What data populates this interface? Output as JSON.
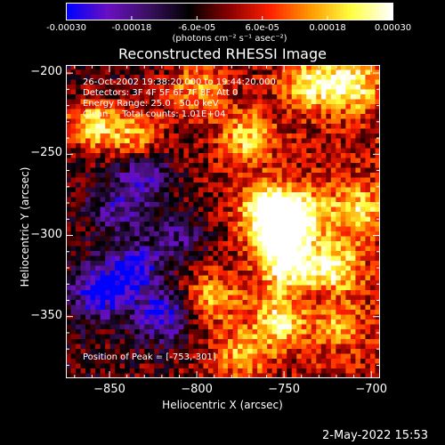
{
  "colorbar": {
    "tick_labels": [
      "-0.00030",
      "-0.00018",
      "-6.0e-05",
      "6.0e-05",
      "0.00018",
      "0.00030"
    ],
    "tick_values": [
      -0.0003,
      -0.00018,
      -6e-05,
      6e-05,
      0.00018,
      0.0003
    ],
    "range": [
      -0.0003,
      0.0003
    ],
    "unit_label": "(photons cm⁻² s⁻¹ asec⁻²)",
    "colormap": [
      "#0000ff",
      "#6a0fc0",
      "#3a1060",
      "#000000",
      "#8a0000",
      "#ff2000",
      "#ff9a00",
      "#ffff40",
      "#ffffff"
    ]
  },
  "chart_data": {
    "type": "heatmap",
    "title": "Reconstructed RHESSI Image",
    "xlabel": "Heliocentric X (arcsec)",
    "ylabel": "Heliocentric Y (arcsec)",
    "xlim": [
      -875,
      -695
    ],
    "ylim": [
      -388,
      -195
    ],
    "x_ticks": [
      -850,
      -800,
      -750,
      -700
    ],
    "y_ticks": [
      -200,
      -250,
      -300,
      -350
    ],
    "x_tick_labels": [
      "−850",
      "−800",
      "−750",
      "−700"
    ],
    "y_tick_labels": [
      "−200",
      "−250",
      "−300",
      "−350"
    ],
    "value_range": [
      -0.0003,
      0.0003
    ],
    "grid": false,
    "annotations": [
      "26-Oct-2002 19:38:20.000 to 19:44:20.000",
      "Detectors: 3F 4F 5F 6F 7F 8F, Att 0",
      "Energy Range: 25.0 - 50.0 keV",
      "Clean     Total counts: 1.01E+04"
    ],
    "peak_label": "Position of Peak = [-753,-301]",
    "peak": [
      -753,
      -301
    ],
    "bright_regions": [
      {
        "x": -860,
        "y": -232,
        "level": 0.9
      },
      {
        "x": -835,
        "y": -238,
        "level": 0.7
      },
      {
        "x": -800,
        "y": -210,
        "level": 0.6
      },
      {
        "x": -772,
        "y": -240,
        "level": 0.7
      },
      {
        "x": -760,
        "y": -283,
        "level": 0.95
      },
      {
        "x": -753,
        "y": -301,
        "level": 1.0
      },
      {
        "x": -740,
        "y": -287,
        "level": 0.8
      },
      {
        "x": -748,
        "y": -320,
        "level": 0.8
      },
      {
        "x": -722,
        "y": -320,
        "level": 0.85
      },
      {
        "x": -708,
        "y": -285,
        "level": 0.7
      },
      {
        "x": -712,
        "y": -207,
        "level": 0.85
      },
      {
        "x": -735,
        "y": -207,
        "level": 0.7
      },
      {
        "x": -752,
        "y": -352,
        "level": 0.8
      },
      {
        "x": -722,
        "y": -352,
        "level": 0.7
      },
      {
        "x": -790,
        "y": -338,
        "level": 0.6
      },
      {
        "x": -775,
        "y": -373,
        "level": 0.6
      }
    ],
    "dark_regions": [
      {
        "x": -855,
        "y": -335,
        "level": -0.9
      },
      {
        "x": -835,
        "y": -320,
        "level": -0.8
      },
      {
        "x": -820,
        "y": -350,
        "level": -0.85
      },
      {
        "x": -830,
        "y": -262,
        "level": -0.6
      },
      {
        "x": -845,
        "y": -283,
        "level": -0.5
      },
      {
        "x": -810,
        "y": -300,
        "level": -0.5
      },
      {
        "x": -728,
        "y": -345,
        "level": -0.4
      }
    ]
  },
  "timestamp": "2-May-2022 15:53"
}
